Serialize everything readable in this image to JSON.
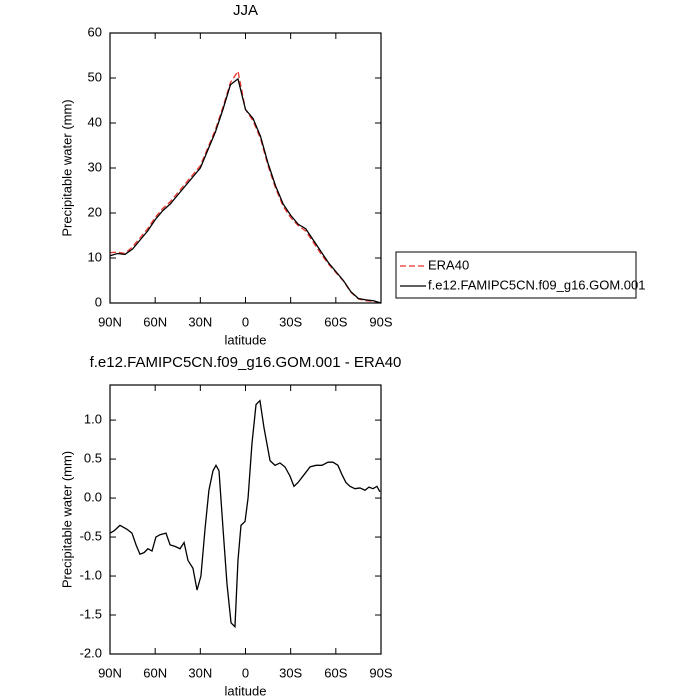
{
  "chart_data": [
    {
      "type": "line",
      "title": "JJA",
      "xlabel": "latitude",
      "ylabel": "Precipitable water (mm)",
      "x": [
        90,
        85,
        80,
        75,
        70,
        65,
        60,
        55,
        50,
        45,
        40,
        35,
        30,
        25,
        20,
        15,
        10,
        5,
        0,
        -5,
        -10,
        -15,
        -20,
        -25,
        -30,
        -35,
        -40,
        -45,
        -50,
        -55,
        -60,
        -65,
        -70,
        -75,
        -80,
        -85,
        -90
      ],
      "series": [
        {
          "name": "ERA40",
          "color": "#e8312a",
          "dash": "dashed",
          "values": [
            11.2,
            11.3,
            11,
            12.5,
            14.5,
            16.5,
            19,
            21,
            22.5,
            24.5,
            26.5,
            28.5,
            30.5,
            34.5,
            38.5,
            43.5,
            49,
            51.5,
            43,
            40.5,
            36.5,
            30.5,
            25.5,
            21.5,
            19,
            17.2,
            16,
            13.5,
            11,
            8.7,
            6.8,
            4.9,
            2.4,
            0.9,
            0.5,
            0.4,
            0
          ]
        },
        {
          "name": "f.e12.FAMIPC5CN.f09_g16.GOM.001",
          "color": "#000000",
          "dash": "solid",
          "values": [
            10.5,
            11,
            10.8,
            12,
            14,
            16,
            18.5,
            20.5,
            22,
            24,
            26,
            28,
            30,
            34,
            38,
            43,
            48.5,
            49.8,
            43,
            41,
            37,
            31,
            26,
            22,
            19.5,
            17.5,
            16.5,
            14,
            11.5,
            9,
            7,
            5,
            2.5,
            1,
            0.7,
            0.5,
            0
          ]
        }
      ],
      "xlim": [
        90,
        -90
      ],
      "xticks": [
        {
          "value": 90,
          "label": "90N"
        },
        {
          "value": 60,
          "label": "60N"
        },
        {
          "value": 30,
          "label": "30N"
        },
        0,
        {
          "value": -30,
          "label": "30S"
        },
        {
          "value": -60,
          "label": "60S"
        },
        {
          "value": -90,
          "label": "90S"
        }
      ],
      "ylim": [
        0,
        60
      ],
      "yticks": [
        0,
        10,
        20,
        30,
        40,
        50,
        60
      ],
      "legend": "right"
    },
    {
      "type": "line",
      "title": "f.e12.FAMIPC5CN.f09_g16.GOM.001 - ERA40",
      "xlabel": "latitude",
      "ylabel": "Precipitable water (mm)",
      "x": [
        90,
        87.3,
        83.4,
        78.7,
        75.4,
        72.7,
        70.1,
        67.4,
        64.8,
        62.1,
        59.5,
        56.8,
        52.8,
        50.1,
        46.8,
        43.5,
        40.8,
        38.2,
        34.9,
        32.2,
        29.6,
        26.9,
        24.3,
        21.6,
        19.6,
        17.6,
        14.9,
        12.3,
        9.6,
        7,
        5,
        3,
        0.3,
        -1.7,
        -4.3,
        -7,
        -9.6,
        -12.3,
        -16.3,
        -19.6,
        -22.9,
        -26.2,
        -29.6,
        -32.2,
        -34.9,
        -38.9,
        -42.9,
        -46.8,
        -50.8,
        -54.8,
        -58.1,
        -61.4,
        -64.1,
        -66.7,
        -69.4,
        -72.7,
        -76,
        -79.4,
        -82,
        -84.7,
        -87.3,
        -89.3
      ],
      "values": [
        -0.45,
        -0.42,
        -0.35,
        -0.4,
        -0.45,
        -0.6,
        -0.72,
        -0.7,
        -0.65,
        -0.68,
        -0.5,
        -0.47,
        -0.45,
        -0.6,
        -0.62,
        -0.65,
        -0.57,
        -0.8,
        -0.9,
        -1.18,
        -1,
        -0.4,
        0.1,
        0.35,
        0.42,
        0.35,
        -0.4,
        -1.1,
        -1.6,
        -1.65,
        -0.8,
        -0.35,
        -0.3,
        0,
        0.7,
        1.2,
        1.25,
        0.9,
        0.48,
        0.42,
        0.45,
        0.4,
        0.28,
        0.15,
        0.2,
        0.3,
        0.4,
        0.42,
        0.42,
        0.46,
        0.46,
        0.42,
        0.3,
        0.2,
        0.15,
        0.12,
        0.13,
        0.1,
        0.14,
        0.12,
        0.15,
        0.08
      ],
      "color": "#000000",
      "xlim": [
        90,
        -90
      ],
      "xticks": [
        {
          "value": 90,
          "label": "90N"
        },
        {
          "value": 60,
          "label": "60N"
        },
        {
          "value": 30,
          "label": "30N"
        },
        0,
        {
          "value": -30,
          "label": "30S"
        },
        {
          "value": -60,
          "label": "60S"
        },
        {
          "value": -90,
          "label": "90S"
        }
      ],
      "ylim": [
        -2,
        1.45
      ],
      "yticks": [
        {
          "value": -2,
          "label": "-2.0"
        },
        {
          "value": -1.5,
          "label": "-1.5"
        },
        {
          "value": -1,
          "label": "-1.0"
        },
        {
          "value": -0.5,
          "label": "-0.5"
        },
        {
          "value": 0,
          "label": "0.0"
        },
        {
          "value": 0.5,
          "label": "0.5"
        },
        {
          "value": 1,
          "label": "1.0"
        }
      ]
    }
  ]
}
